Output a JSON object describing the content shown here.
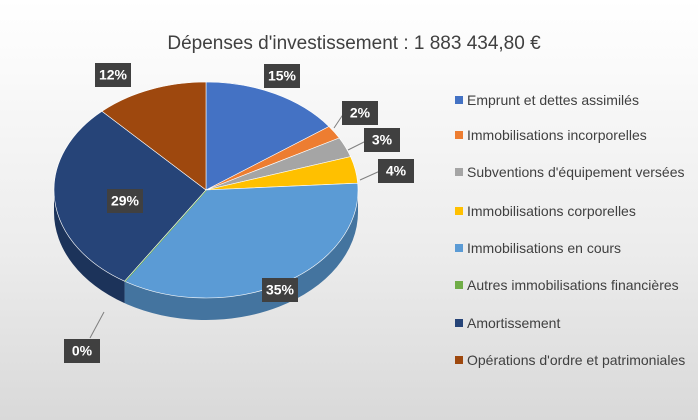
{
  "chart_data": {
    "type": "pie",
    "title": "Dépenses d'investissement : 1 883 434,80 €",
    "categories": [
      "Emprunt et dettes assimilés",
      "Immobilisations incorporelles",
      "Subventions d'équipement versées",
      "Immobilisations corporelles",
      "Immobilisations en cours",
      "Autres immobilisations financières",
      "Amortissement",
      "Opérations d'ordre et patrimoniales"
    ],
    "values": [
      15,
      2,
      3,
      4,
      35,
      0,
      29,
      12
    ],
    "value_labels": [
      "15%",
      "2%",
      "3%",
      "4%",
      "35%",
      "0%",
      "29%",
      "12%"
    ],
    "colors": [
      "#4472c4",
      "#ed7d31",
      "#a5a5a5",
      "#ffc000",
      "#5b9bd5",
      "#70ad47",
      "#264478",
      "#9e480e"
    ],
    "legend": "right"
  }
}
